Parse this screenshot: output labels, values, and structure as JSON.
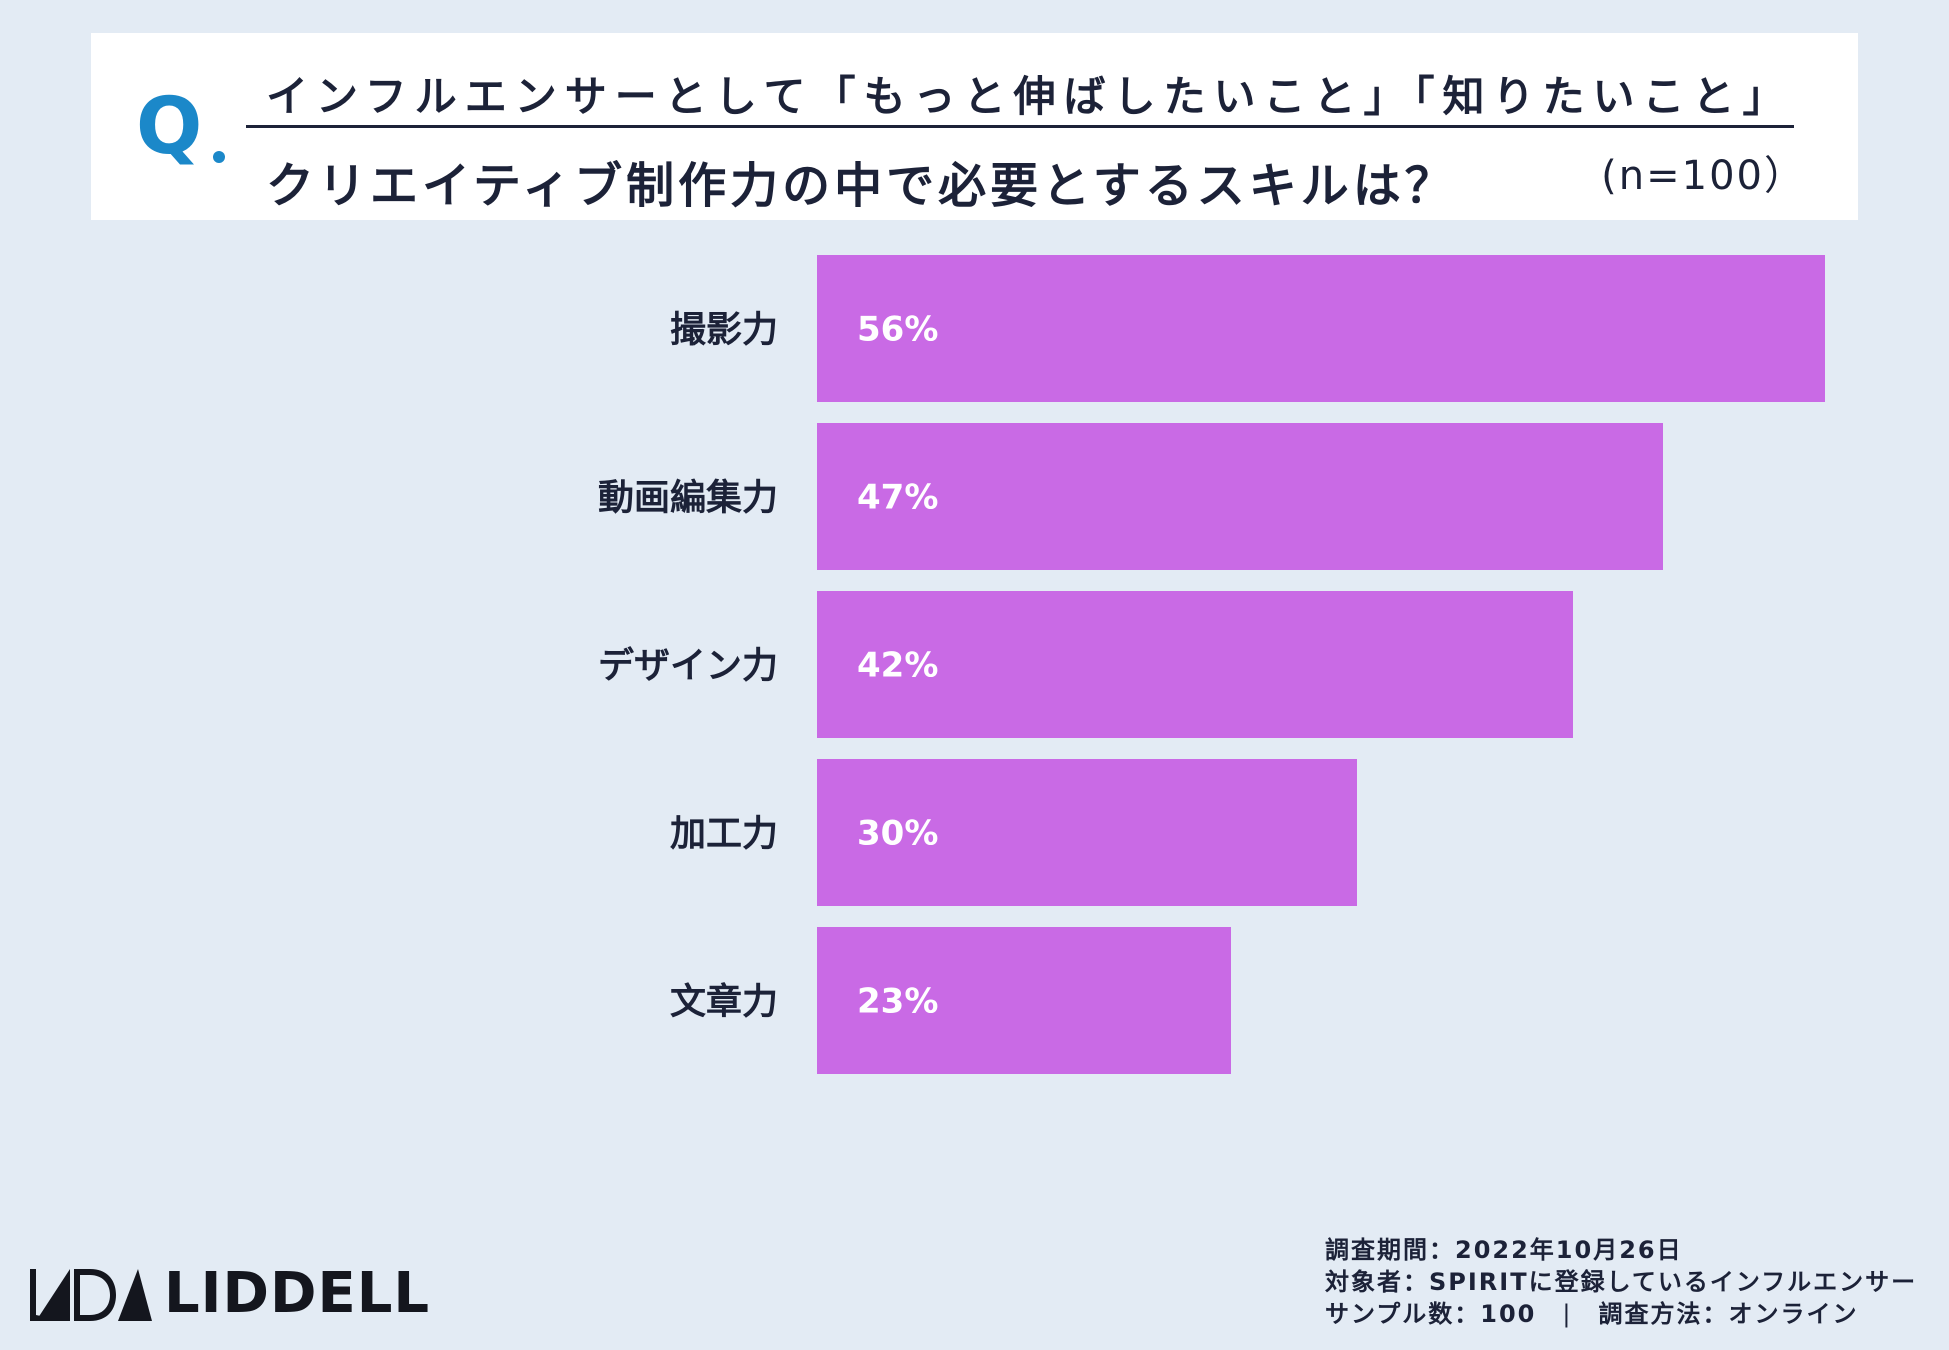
{
  "question": {
    "mark": "Q",
    "line1": "インフルエンサーとして「もっと伸ばしたいこと」「知りたいこと」",
    "line2": "クリエイティブ制作力の中で必要とするスキルは？",
    "sample": "(n=100）"
  },
  "chart_data": {
    "type": "bar",
    "orientation": "horizontal",
    "categories": [
      "撮影力",
      "動画編集力",
      "デザイン力",
      "加工力",
      "文章力"
    ],
    "values": [
      56,
      47,
      42,
      30,
      23
    ],
    "value_labels": [
      "56%",
      "47%",
      "42%",
      "30%",
      "23%"
    ],
    "unit": "%",
    "bar_color": "#c96ae5",
    "xlim": [
      0,
      56
    ],
    "grid": false,
    "legend": "none"
  },
  "footer": {
    "logo_text": "LIDDELL",
    "survey_period": "調査期間：2022年10月26日",
    "target": "対象者：SPIRITに登録しているインフルエンサー",
    "sample_size": "サンプル数：100",
    "separator": "|",
    "method": "調査方法：オンライン"
  },
  "colors": {
    "background": "#e3ebf4",
    "accent": "#1b88c9",
    "text": "#1c2238"
  }
}
